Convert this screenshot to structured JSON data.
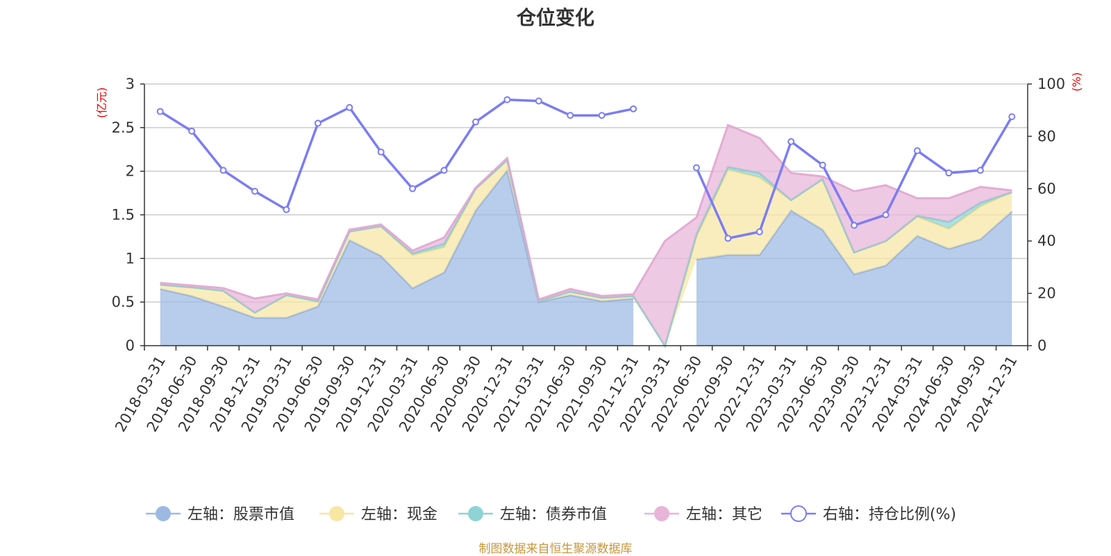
{
  "colors": {
    "stock": "#9db9e3",
    "cash": "#f8e6a3",
    "bond": "#8fd3d4",
    "other": "#e8b4d8",
    "ratio": "#7b7cf5",
    "unit": "#e60000",
    "source": "#c8963c"
  },
  "chart_data": {
    "type": "area",
    "title": "仓位变化",
    "left_axis": {
      "unit": "(亿元)",
      "min": 0,
      "max": 3,
      "ticks": [
        "0",
        "0.5",
        "1",
        "1.5",
        "2",
        "2.5",
        "3"
      ]
    },
    "right_axis": {
      "unit": "(%)",
      "min": 0,
      "max": 100,
      "ticks": [
        "0",
        "20",
        "40",
        "60",
        "80",
        "100"
      ]
    },
    "categories": [
      "2018-03-31",
      "2018-06-30",
      "2018-09-30",
      "2018-12-31",
      "2019-03-31",
      "2019-06-30",
      "2019-09-30",
      "2019-12-31",
      "2020-03-31",
      "2020-06-30",
      "2020-09-30",
      "2020-12-31",
      "2021-03-31",
      "2021-06-30",
      "2021-09-30",
      "2021-12-31",
      "2022-03-31",
      "2022-06-30",
      "2022-09-30",
      "2022-12-31",
      "2023-03-31",
      "2023-06-30",
      "2023-09-30",
      "2023-12-31",
      "2024-03-31",
      "2024-06-30",
      "2024-09-30",
      "2024-12-31"
    ],
    "grid": true,
    "legend_position": "bottom",
    "series": [
      {
        "name": "左轴：股票市值",
        "axis": "left",
        "stack": true,
        "values": [
          0.65,
          0.57,
          0.45,
          0.32,
          0.32,
          0.45,
          1.21,
          1.03,
          0.66,
          0.84,
          1.55,
          2.01,
          0.5,
          0.58,
          0.51,
          0.54,
          null,
          0.99,
          1.04,
          1.04,
          1.55,
          1.33,
          0.82,
          0.92,
          1.26,
          1.11,
          1.22,
          1.54
        ]
      },
      {
        "name": "左轴：现金",
        "axis": "left",
        "stack": true,
        "values": [
          0.05,
          0.1,
          0.18,
          0.06,
          0.26,
          0.06,
          0.1,
          0.34,
          0.38,
          0.29,
          0.25,
          0.12,
          0.01,
          0.04,
          0.04,
          0.03,
          0.0,
          0.26,
          0.98,
          0.89,
          0.12,
          0.58,
          0.25,
          0.28,
          0.22,
          0.23,
          0.38,
          0.22
        ]
      },
      {
        "name": "左轴：债券市值",
        "axis": "left",
        "stack": true,
        "values": [
          0,
          0,
          0,
          0,
          0,
          0,
          0,
          0,
          0.02,
          0.04,
          0,
          0,
          0,
          0,
          0,
          0,
          0,
          0.03,
          0.03,
          0.05,
          0,
          0,
          0,
          0,
          0.01,
          0.08,
          0.04,
          0
        ]
      },
      {
        "name": "左轴：其它",
        "axis": "left",
        "stack": true,
        "values": [
          0.02,
          0.02,
          0.03,
          0.16,
          0.02,
          0.02,
          0.02,
          0.02,
          0.03,
          0.07,
          0.01,
          0.02,
          0.02,
          0.03,
          0.02,
          0.02,
          1.2,
          0.19,
          0.48,
          0.4,
          0.31,
          0.03,
          0.7,
          0.64,
          0.2,
          0.27,
          0.18,
          0.02
        ]
      },
      {
        "name": "右轴：持仓比例(%)",
        "axis": "right",
        "type": "line",
        "values": [
          89.5,
          82,
          67,
          59,
          52,
          85,
          91,
          74,
          60,
          67,
          85.5,
          94,
          93.5,
          88,
          88,
          90.5,
          null,
          68,
          41,
          43.5,
          78,
          69,
          46,
          50,
          74.5,
          66,
          67,
          87.5
        ]
      }
    ]
  },
  "source_note": "制图数据来自恒生聚源数据库"
}
